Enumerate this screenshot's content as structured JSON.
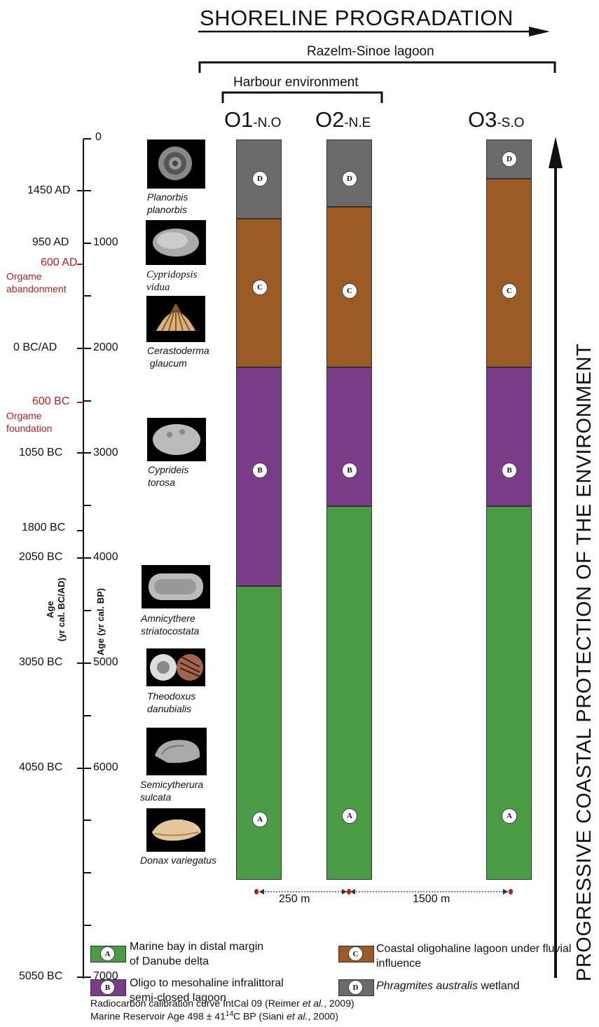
{
  "header": {
    "title": "SHORELINE PROGRADATION",
    "lagoon": "Razelm-Sinoe lagoon",
    "harbour": "Harbour environment"
  },
  "cores": [
    {
      "name": "O1",
      "suffix": "-N.O"
    },
    {
      "name": "O2",
      "suffix": "-N.E"
    },
    {
      "name": "O3",
      "suffix": "-S.O"
    }
  ],
  "units": {
    "A": "A",
    "B": "B",
    "C": "C",
    "D": "D"
  },
  "colors": {
    "A": "#4a9a46",
    "B": "#7b3d8a",
    "C": "#9a5a23",
    "D": "#6b6b6b",
    "accent_red": "#b22222"
  },
  "axis": {
    "bp_ticks": [
      "0",
      "1000",
      "2000",
      "3000",
      "4000",
      "5000",
      "6000",
      "7000"
    ],
    "calendar": {
      "t1450": "1450 AD",
      "t950": "950 AD",
      "t600ad": "600 AD",
      "orgame_abandonment": "Orgame\nabandonment",
      "t0": "0 BC/AD",
      "t600bc": "600 BC",
      "orgame_foundation": "Orgame\nfoundation",
      "t1050": "1050 BC",
      "t1800": "1800 BC",
      "t2050": "2050 BC",
      "t3050": "3050 BC",
      "t4050": "4050 BC",
      "t5050": "5050 BC"
    },
    "label_cal_line1": "Age",
    "label_cal_line2": "(yr cal. BC/AD)",
    "label_bp": "Age (yr cal. BP)"
  },
  "species": [
    {
      "name": "Planorbis\nplanorbis",
      "icon": "snail-shell"
    },
    {
      "name": "Cypridopsis\nvidua",
      "icon": "ostracod"
    },
    {
      "name": "Cerastoderma\n glaucum",
      "icon": "cockle-shell"
    },
    {
      "name": "Cyprideis\ntorosa",
      "icon": "ostracod"
    },
    {
      "name": "Amnicythere\nstriatocostata",
      "icon": "ostracod"
    },
    {
      "name": "Theodoxus\ndanubialis",
      "icon": "snail-shells"
    },
    {
      "name": "Semicytherura\nsulcata",
      "icon": "ostracod"
    },
    {
      "name": "Donax variegatus",
      "icon": "clam-shell"
    }
  ],
  "distances": {
    "d1": "250 m",
    "d2": "1500 m"
  },
  "side_label": "PROGRESSIVE COASTAL PROTECTION OF THE ENVIRONMENT",
  "legend": {
    "A": "Marine bay in distal margin\nof Danube delta",
    "B": "Oligo to mesohaline infralittoral\nsemi-closed lagoon",
    "C": "Coastal oligohaline lagoon under fluvial\ninfluence",
    "D_italic": "Phragmites australis",
    "D_rest": " wetland"
  },
  "footer": {
    "line1_a": "Radiocarbon calibration curve IntCal 09 (Reimer ",
    "line1_b": "et al.",
    "line1_c": ", 2009)",
    "line2_a": "Marine Reservoir Age 498 ± 41",
    "line2_sup": "14",
    "line2_b": "C BP (Siani ",
    "line2_c": "et al.",
    "line2_d": ", 2000)"
  }
}
